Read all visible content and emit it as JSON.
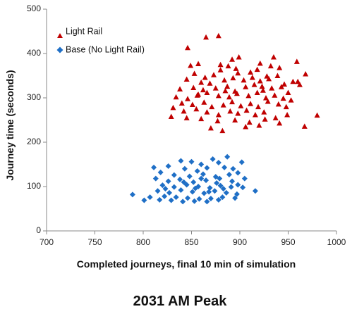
{
  "chart_data": {
    "type": "scatter",
    "title": "2031 AM Peak",
    "xlabel": "Completed journeys, final 10 min of simulation",
    "ylabel": "Journey time (seconds)",
    "xlim": [
      700,
      1000
    ],
    "ylim": [
      0,
      500
    ],
    "xticks": [
      700,
      750,
      800,
      850,
      900,
      950,
      1000
    ],
    "yticks": [
      0,
      100,
      200,
      300,
      400,
      500
    ],
    "grid": false,
    "legend": "top-left",
    "series": [
      {
        "name": "Light Rail",
        "marker": "triangle",
        "color": "#c00000",
        "points": [
          [
            865,
            437
          ],
          [
            878,
            440
          ],
          [
            846,
            413
          ],
          [
            892,
            387
          ],
          [
            899,
            392
          ],
          [
            935,
            392
          ],
          [
            921,
            378
          ],
          [
            959,
            382
          ],
          [
            849,
            373
          ],
          [
            857,
            377
          ],
          [
            880,
            375
          ],
          [
            888,
            372
          ],
          [
            896,
            366
          ],
          [
            932,
            372
          ],
          [
            941,
            368
          ],
          [
            968,
            354
          ],
          [
            880,
            363
          ],
          [
            853,
            355
          ],
          [
            864,
            346
          ],
          [
            873,
            352
          ],
          [
            898,
            356
          ],
          [
            911,
            358
          ],
          [
            918,
            364
          ],
          [
            928,
            349
          ],
          [
            939,
            350
          ],
          [
            960,
            337
          ],
          [
            845,
            342
          ],
          [
            860,
            335
          ],
          [
            869,
            333
          ],
          [
            884,
            340
          ],
          [
            893,
            345
          ],
          [
            904,
            340
          ],
          [
            913,
            346
          ],
          [
            921,
            338
          ],
          [
            930,
            343
          ],
          [
            946,
            331
          ],
          [
            955,
            337
          ],
          [
            962,
            330
          ],
          [
            838,
            320
          ],
          [
            852,
            323
          ],
          [
            862,
            318
          ],
          [
            875,
            322
          ],
          [
            887,
            326
          ],
          [
            895,
            315
          ],
          [
            906,
            325
          ],
          [
            915,
            330
          ],
          [
            924,
            317
          ],
          [
            933,
            322
          ],
          [
            943,
            325
          ],
          [
            950,
            312
          ],
          [
            834,
            302
          ],
          [
            846,
            298
          ],
          [
            857,
            308
          ],
          [
            866,
            312
          ],
          [
            878,
            305
          ],
          [
            889,
            302
          ],
          [
            897,
            310
          ],
          [
            909,
            305
          ],
          [
            918,
            312
          ],
          [
            927,
            300
          ],
          [
            936,
            306
          ],
          [
            945,
            299
          ],
          [
            953,
            295
          ],
          [
            840,
            288
          ],
          [
            851,
            285
          ],
          [
            863,
            290
          ],
          [
            871,
            280
          ],
          [
            883,
            284
          ],
          [
            892,
            291
          ],
          [
            901,
            282
          ],
          [
            911,
            287
          ],
          [
            919,
            280
          ],
          [
            929,
            292
          ],
          [
            940,
            286
          ],
          [
            948,
            280
          ],
          [
            831,
            278
          ],
          [
            842,
            270
          ],
          [
            855,
            275
          ],
          [
            866,
            268
          ],
          [
            878,
            262
          ],
          [
            890,
            270
          ],
          [
            898,
            265
          ],
          [
            907,
            272
          ],
          [
            916,
            262
          ],
          [
            925,
            268
          ],
          [
            937,
            255
          ],
          [
            949,
            262
          ],
          [
            829,
            258
          ],
          [
            845,
            255
          ],
          [
            860,
            253
          ],
          [
            877,
            248
          ],
          [
            895,
            250
          ],
          [
            910,
            245
          ],
          [
            926,
            252
          ],
          [
            941,
            243
          ],
          [
            870,
            232
          ],
          [
            882,
            226
          ],
          [
            906,
            235
          ],
          [
            920,
            238
          ],
          [
            967,
            236
          ],
          [
            980,
            261
          ],
          [
            856,
            306
          ],
          [
            885,
            316
          ],
          [
            923,
            326
          ]
        ]
      },
      {
        "name": "Base (No Light Rail)",
        "marker": "diamond",
        "color": "#1f6fc6",
        "points": [
          [
            887,
            167
          ],
          [
            839,
            158
          ],
          [
            872,
            162
          ],
          [
            850,
            156
          ],
          [
            860,
            150
          ],
          [
            878,
            154
          ],
          [
            902,
            155
          ],
          [
            811,
            143
          ],
          [
            826,
            146
          ],
          [
            843,
            140
          ],
          [
            856,
            135
          ],
          [
            866,
            142
          ],
          [
            884,
            143
          ],
          [
            893,
            140
          ],
          [
            818,
            132
          ],
          [
            832,
            126
          ],
          [
            848,
            123
          ],
          [
            862,
            128
          ],
          [
            875,
            122
          ],
          [
            889,
            127
          ],
          [
            898,
            131
          ],
          [
            813,
            118
          ],
          [
            826,
            112
          ],
          [
            838,
            116
          ],
          [
            852,
            110
          ],
          [
            865,
            114
          ],
          [
            879,
            118
          ],
          [
            892,
            112
          ],
          [
            905,
            118
          ],
          [
            820,
            103
          ],
          [
            832,
            99
          ],
          [
            845,
            104
          ],
          [
            857,
            100
          ],
          [
            869,
            97
          ],
          [
            880,
            102
          ],
          [
            891,
            99
          ],
          [
            903,
            98
          ],
          [
            916,
            90
          ],
          [
            815,
            90
          ],
          [
            827,
            86
          ],
          [
            839,
            92
          ],
          [
            851,
            88
          ],
          [
            863,
            85
          ],
          [
            874,
            90
          ],
          [
            886,
            86
          ],
          [
            897,
            83
          ],
          [
            789,
            82
          ],
          [
            807,
            76
          ],
          [
            822,
            78
          ],
          [
            834,
            76
          ],
          [
            846,
            74
          ],
          [
            858,
            72
          ],
          [
            870,
            73
          ],
          [
            882,
            76
          ],
          [
            895,
            74
          ],
          [
            801,
            69
          ],
          [
            817,
            70
          ],
          [
            829,
            69
          ],
          [
            841,
            66
          ],
          [
            853,
            67
          ],
          [
            866,
            66
          ],
          [
            878,
            70
          ],
          [
            854,
            96
          ],
          [
            868,
            88
          ],
          [
            842,
            110
          ],
          [
            883,
            95
          ],
          [
            898,
            104
          ],
          [
            823,
            95
          ],
          [
            876,
            108
          ],
          [
            860,
            118
          ]
        ]
      }
    ]
  }
}
